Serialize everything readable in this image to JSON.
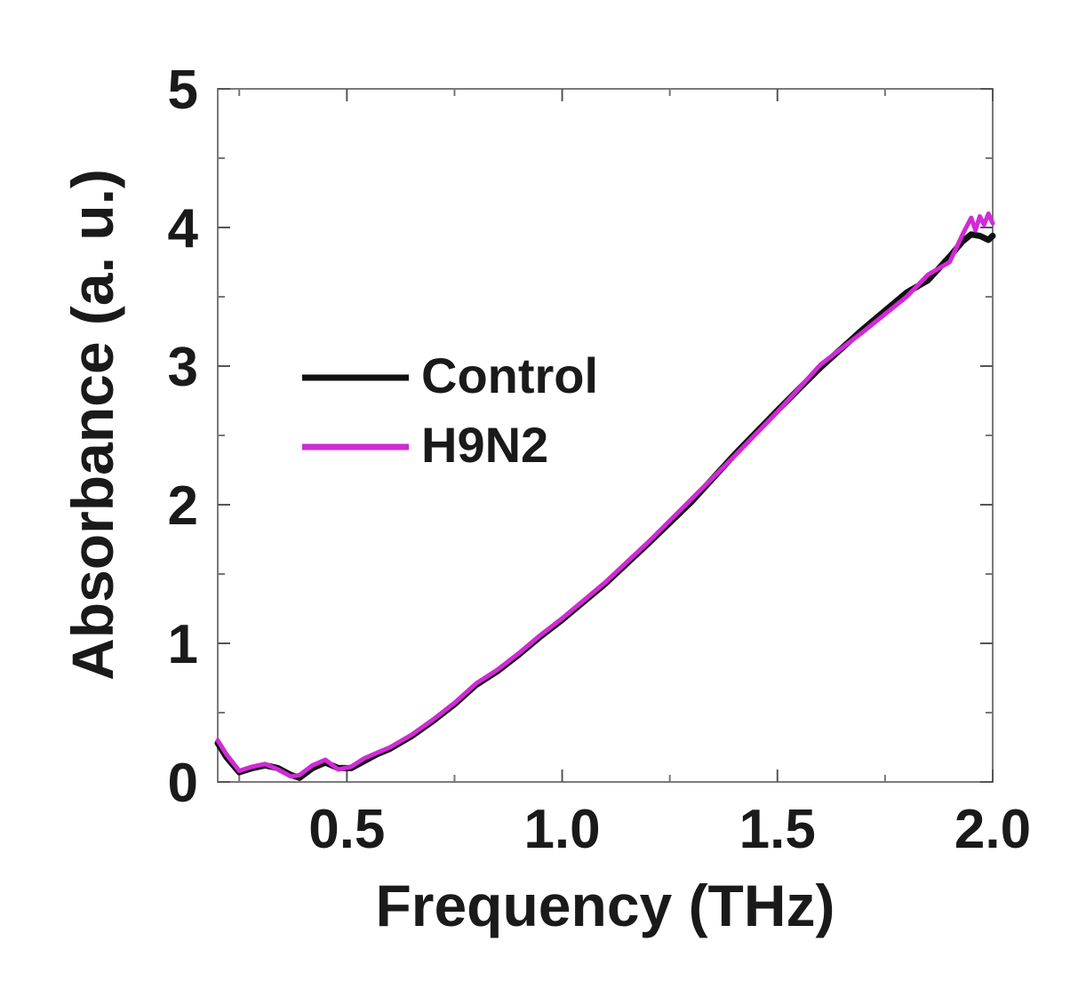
{
  "chart_data": {
    "type": "line",
    "xlabel": "Frequency (THz)",
    "ylabel": "Absorbance (a. u.)",
    "xlim": [
      0.2,
      2.0
    ],
    "ylim": [
      0,
      5
    ],
    "x_ticks": [
      0.5,
      1.0,
      1.5,
      2.0
    ],
    "x_tick_labels": [
      "0.5",
      "1.0",
      "1.5",
      "2.0"
    ],
    "y_ticks": [
      0,
      1,
      2,
      3,
      4,
      5
    ],
    "y_tick_labels": [
      "0",
      "1",
      "2",
      "3",
      "4",
      "5"
    ],
    "grid": false,
    "legend_position": "middle-left",
    "series": [
      {
        "name": "Control",
        "color": "#111111",
        "x": [
          0.2,
          0.22,
          0.25,
          0.28,
          0.31,
          0.34,
          0.37,
          0.39,
          0.42,
          0.45,
          0.48,
          0.51,
          0.54,
          0.57,
          0.6,
          0.65,
          0.7,
          0.75,
          0.8,
          0.85,
          0.9,
          0.95,
          1.0,
          1.1,
          1.2,
          1.3,
          1.4,
          1.5,
          1.6,
          1.7,
          1.8,
          1.85,
          1.9,
          1.93,
          1.95,
          1.97,
          1.99,
          2.0
        ],
        "values": [
          0.28,
          0.18,
          0.07,
          0.1,
          0.12,
          0.1,
          0.05,
          0.03,
          0.1,
          0.14,
          0.1,
          0.1,
          0.15,
          0.2,
          0.24,
          0.33,
          0.44,
          0.56,
          0.7,
          0.8,
          0.92,
          1.05,
          1.17,
          1.43,
          1.72,
          2.02,
          2.36,
          2.68,
          2.99,
          3.27,
          3.53,
          3.62,
          3.79,
          3.9,
          3.95,
          3.94,
          3.91,
          3.94
        ]
      },
      {
        "name": "H9N2",
        "color": "#d12ad6",
        "x": [
          0.2,
          0.22,
          0.25,
          0.28,
          0.31,
          0.34,
          0.37,
          0.39,
          0.42,
          0.45,
          0.48,
          0.51,
          0.54,
          0.57,
          0.6,
          0.65,
          0.7,
          0.75,
          0.8,
          0.85,
          0.9,
          0.95,
          1.0,
          1.1,
          1.2,
          1.3,
          1.4,
          1.5,
          1.6,
          1.7,
          1.8,
          1.85,
          1.9,
          1.93,
          1.95,
          1.96,
          1.97,
          1.98,
          1.99,
          2.0
        ],
        "values": [
          0.3,
          0.2,
          0.08,
          0.11,
          0.13,
          0.09,
          0.04,
          0.05,
          0.12,
          0.16,
          0.09,
          0.11,
          0.17,
          0.21,
          0.25,
          0.34,
          0.45,
          0.57,
          0.71,
          0.81,
          0.93,
          1.06,
          1.18,
          1.44,
          1.73,
          2.04,
          2.35,
          2.67,
          3.01,
          3.25,
          3.5,
          3.66,
          3.75,
          3.95,
          4.07,
          3.98,
          4.08,
          4.02,
          4.1,
          4.03
        ]
      }
    ]
  }
}
